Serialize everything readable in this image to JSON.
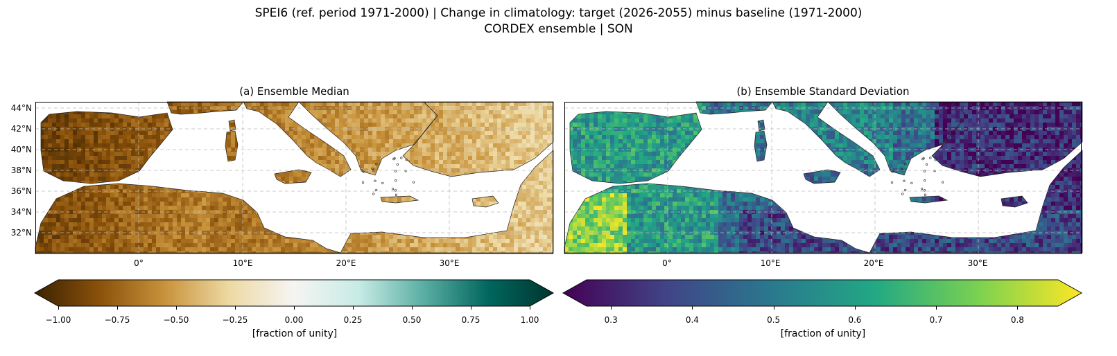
{
  "title_line1": "SPEI6 (ref. period 1971-2000) | Change in climatology: target (2026-2055) minus baseline (1971-2000)",
  "title_line2": "CORDEX ensemble | SON",
  "panels": [
    {
      "title": "(a) Ensemble Median",
      "colormap": "BrBG",
      "colorbar": {
        "ticks": [
          "−1.00",
          "−0.75",
          "−0.50",
          "−0.25",
          "0.00",
          "0.25",
          "0.50",
          "0.75",
          "1.00"
        ],
        "range": [
          -1.0,
          1.0
        ],
        "unit": "[fraction of unity]",
        "colors": [
          "#3b2202",
          "#8a510a",
          "#c8923b",
          "#edd9a3",
          "#f5f5f3",
          "#c7ebe5",
          "#5aaea3",
          "#01665e",
          "#00352f"
        ]
      }
    },
    {
      "title": "(b) Ensemble Standard Deviation",
      "colormap": "viridis",
      "colorbar": {
        "ticks": [
          "0.3",
          "0.4",
          "0.5",
          "0.6",
          "0.7",
          "0.8"
        ],
        "range": [
          0.27,
          0.85
        ],
        "unit": "[fraction of unity]",
        "colors": [
          "#440154",
          "#414487",
          "#2a788e",
          "#22a884",
          "#7ad151",
          "#fde725"
        ]
      }
    }
  ],
  "lat_labels": [
    "44°N",
    "42°N",
    "40°N",
    "38°N",
    "36°N",
    "34°N",
    "32°N"
  ],
  "lon_labels": [
    "0°",
    "10°E",
    "20°E",
    "30°E"
  ]
}
